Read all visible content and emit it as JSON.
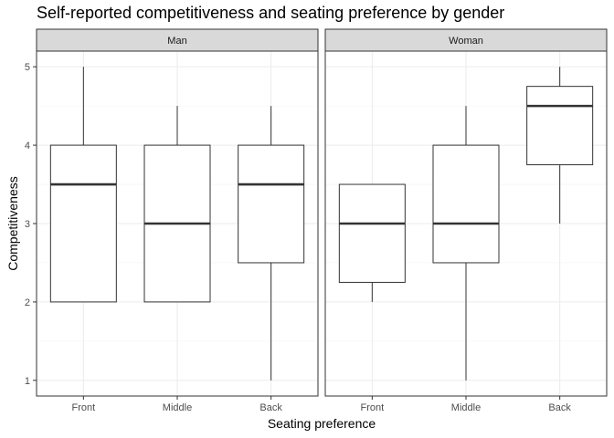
{
  "chart_data": {
    "type": "boxplot",
    "title": "Self-reported competitiveness and seating preference by gender",
    "xlabel": "Seating preference",
    "ylabel": "Competitiveness",
    "categories": [
      "Front",
      "Middle",
      "Back"
    ],
    "ylim": [
      0.8,
      5.2
    ],
    "yticks": [
      1,
      2,
      3,
      4,
      5
    ],
    "grid": true,
    "facets": [
      {
        "label": "Man",
        "boxes": [
          {
            "category": "Front",
            "min": 2,
            "q1": 2,
            "median": 3.5,
            "q3": 4,
            "max": 5
          },
          {
            "category": "Middle",
            "min": 2,
            "q1": 2,
            "median": 3,
            "q3": 4,
            "max": 4.5
          },
          {
            "category": "Back",
            "min": 1,
            "q1": 2.5,
            "median": 3.5,
            "q3": 4,
            "max": 4.5
          }
        ]
      },
      {
        "label": "Woman",
        "boxes": [
          {
            "category": "Front",
            "min": 2,
            "q1": 2.25,
            "median": 3,
            "q3": 3.5,
            "max": 3.5
          },
          {
            "category": "Middle",
            "min": 1,
            "q1": 2.5,
            "median": 3,
            "q3": 4,
            "max": 4.5
          },
          {
            "category": "Back",
            "min": 3,
            "q1": 3.75,
            "median": 4.5,
            "q3": 4.75,
            "max": 5
          }
        ]
      }
    ]
  }
}
